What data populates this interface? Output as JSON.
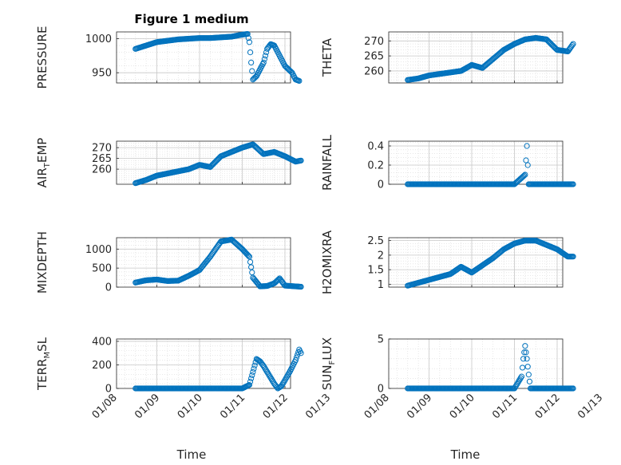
{
  "figure_title": "Figure 1 medium",
  "x_axis_label": "Time",
  "x_tick_labels": [
    "01/08",
    "01/09",
    "01/10",
    "01/11",
    "01/12",
    "01/13"
  ],
  "marker_color": "#0072BD",
  "chart_data": [
    {
      "type": "scatter",
      "ylabel_main": "PRESSURE",
      "ylabel_sub": "",
      "ylim": [
        935,
        1010
      ],
      "yticks": [
        950,
        1000
      ],
      "ytick_labels": [
        "950",
        "1000"
      ],
      "x": [
        "01/08 12:00",
        "01/08 18:00",
        "01/09 00:00",
        "01/09 06:00",
        "01/09 12:00",
        "01/09 18:00",
        "01/10 00:00",
        "01/10 06:00",
        "01/10 12:00",
        "01/10 18:00",
        "01/11 00:00",
        "01/11 03:00",
        "01/11 04:00",
        "01/11 05:00",
        "01/11 06:00",
        "01/11 08:00",
        "01/11 10:00",
        "01/11 12:00",
        "01/11 14:00",
        "01/11 16:00",
        "01/11 18:00",
        "01/11 20:00",
        "01/11 22:00",
        "01/12 00:00",
        "01/12 02:00",
        "01/12 04:00",
        "01/12 06:00",
        "01/12 08:00"
      ],
      "y": [
        985,
        990,
        995,
        997,
        999,
        1000,
        1001,
        1001,
        1002,
        1003,
        1006,
        1007,
        995,
        965,
        940,
        945,
        955,
        965,
        985,
        992,
        990,
        980,
        970,
        960,
        955,
        950,
        940,
        938
      ]
    },
    {
      "type": "scatter",
      "ylabel_main": "THETA",
      "ylabel_sub": "",
      "ylim": [
        256,
        273
      ],
      "yticks": [
        260,
        265,
        270
      ],
      "ytick_labels": [
        "260",
        "265",
        "270"
      ],
      "x": [
        "01/08 12:00",
        "01/08 18:00",
        "01/09 00:00",
        "01/09 06:00",
        "01/09 12:00",
        "01/09 18:00",
        "01/10 00:00",
        "01/10 06:00",
        "01/10 12:00",
        "01/10 18:00",
        "01/11 00:00",
        "01/11 06:00",
        "01/11 12:00",
        "01/11 18:00",
        "01/12 00:00",
        "01/12 06:00",
        "01/12 09:00"
      ],
      "y": [
        257,
        257.5,
        258.5,
        259,
        259.5,
        260,
        262,
        261,
        264,
        267,
        269,
        270.5,
        271,
        270.5,
        267,
        266.5,
        269
      ]
    },
    {
      "type": "scatter",
      "ylabel_main": "AIR",
      "ylabel_sub": "T",
      "ylabel_tail": "EMP",
      "ylim": [
        253,
        273
      ],
      "yticks": [
        260,
        265,
        270
      ],
      "ytick_labels": [
        "260",
        "265",
        "270"
      ],
      "x": [
        "01/08 12:00",
        "01/08 18:00",
        "01/09 00:00",
        "01/09 06:00",
        "01/09 12:00",
        "01/09 18:00",
        "01/10 00:00",
        "01/10 06:00",
        "01/10 12:00",
        "01/10 18:00",
        "01/11 00:00",
        "01/11 06:00",
        "01/11 12:00",
        "01/11 18:00",
        "01/12 00:00",
        "01/12 06:00",
        "01/12 09:00"
      ],
      "y": [
        253.5,
        255,
        257,
        258,
        259,
        260,
        262,
        261,
        266,
        268,
        270,
        271.5,
        267,
        268,
        266,
        263.5,
        264
      ]
    },
    {
      "type": "scatter",
      "ylabel_main": "RAINFALL",
      "ylabel_sub": "",
      "ylim": [
        0,
        0.45
      ],
      "yticks": [
        0,
        0.2,
        0.4
      ],
      "ytick_labels": [
        "0",
        "0.2",
        "0.4"
      ],
      "x": [
        "01/08 12:00",
        "01/09 00:00",
        "01/09 12:00",
        "01/10 00:00",
        "01/10 12:00",
        "01/11 00:00",
        "01/11 06:00",
        "01/11 07:00",
        "01/11 08:00",
        "01/11 12:00",
        "01/12 00:00",
        "01/12 09:00"
      ],
      "y": [
        0,
        0,
        0,
        0,
        0,
        0,
        0.1,
        0.4,
        0,
        0,
        0,
        0
      ]
    },
    {
      "type": "scatter",
      "ylabel_main": "MIXDEPTH",
      "ylabel_sub": "",
      "ylim": [
        0,
        1300
      ],
      "yticks": [
        0,
        500,
        1000
      ],
      "ytick_labels": [
        "0",
        "500",
        "1000"
      ],
      "x": [
        "01/08 12:00",
        "01/08 18:00",
        "01/09 00:00",
        "01/09 06:00",
        "01/09 12:00",
        "01/09 18:00",
        "01/10 00:00",
        "01/10 06:00",
        "01/10 12:00",
        "01/10 18:00",
        "01/11 00:00",
        "01/11 04:00",
        "01/11 06:00",
        "01/11 10:00",
        "01/11 14:00",
        "01/11 18:00",
        "01/11 21:00",
        "01/12 00:00",
        "01/12 06:00",
        "01/12 09:00"
      ],
      "y": [
        120,
        180,
        200,
        160,
        170,
        300,
        450,
        800,
        1200,
        1250,
        1000,
        800,
        250,
        20,
        30,
        100,
        230,
        40,
        20,
        10
      ]
    },
    {
      "type": "scatter",
      "ylabel_main": "H2OMIXRA",
      "ylabel_sub": "",
      "ylim": [
        0.9,
        2.6
      ],
      "yticks": [
        1,
        1.5,
        2,
        2.5
      ],
      "ytick_labels": [
        "1",
        "1.5",
        "2",
        "2.5"
      ],
      "x": [
        "01/08 12:00",
        "01/08 18:00",
        "01/09 00:00",
        "01/09 06:00",
        "01/09 12:00",
        "01/09 18:00",
        "01/10 00:00",
        "01/10 06:00",
        "01/10 12:00",
        "01/10 18:00",
        "01/11 00:00",
        "01/11 06:00",
        "01/11 12:00",
        "01/11 18:00",
        "01/12 00:00",
        "01/12 06:00",
        "01/12 09:00"
      ],
      "y": [
        0.95,
        1.05,
        1.15,
        1.25,
        1.35,
        1.6,
        1.4,
        1.65,
        1.9,
        2.2,
        2.4,
        2.5,
        2.5,
        2.35,
        2.2,
        1.95,
        1.95
      ]
    },
    {
      "type": "scatter",
      "ylabel_main": "TERR",
      "ylabel_sub": "M",
      "ylabel_tail": "SL",
      "ylim": [
        0,
        420
      ],
      "yticks": [
        0,
        200,
        400
      ],
      "ytick_labels": [
        "0",
        "200",
        "400"
      ],
      "x": [
        "01/08 12:00",
        "01/09 00:00",
        "01/09 12:00",
        "01/10 00:00",
        "01/10 12:00",
        "01/11 00:00",
        "01/11 04:00",
        "01/11 06:00",
        "01/11 08:00",
        "01/11 10:00",
        "01/11 12:00",
        "01/11 14:00",
        "01/11 16:00",
        "01/11 18:00",
        "01/11 20:00",
        "01/11 22:00",
        "01/12 00:00",
        "01/12 03:00",
        "01/12 06:00",
        "01/12 08:00",
        "01/12 09:00"
      ],
      "y": [
        0,
        0,
        0,
        0,
        0,
        0,
        30,
        140,
        250,
        230,
        190,
        140,
        90,
        40,
        0,
        20,
        70,
        150,
        240,
        330,
        300
      ]
    },
    {
      "type": "scatter",
      "ylabel_main": "SUN",
      "ylabel_sub": "F",
      "ylabel_tail": "LUX",
      "ylim": [
        0,
        5
      ],
      "yticks": [
        0,
        5
      ],
      "ytick_labels": [
        "0",
        "5"
      ],
      "x": [
        "01/08 12:00",
        "01/09 00:00",
        "01/09 12:00",
        "01/10 00:00",
        "01/10 12:00",
        "01/11 00:00",
        "01/11 04:00",
        "01/11 05:00",
        "01/11 06:00",
        "01/11 07:00",
        "01/11 08:00",
        "01/11 09:00",
        "01/11 12:00",
        "01/12 00:00",
        "01/12 09:00"
      ],
      "y": [
        0,
        0,
        0,
        0,
        0,
        0,
        1.2,
        3,
        4.3,
        3,
        1.4,
        0,
        0,
        0,
        0
      ]
    }
  ]
}
